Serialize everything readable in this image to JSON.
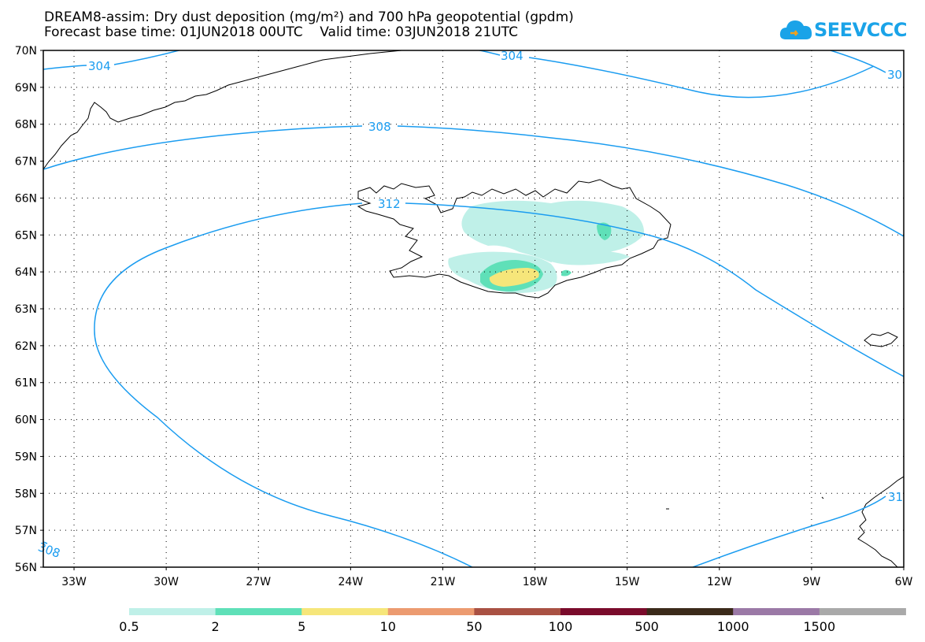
{
  "title": {
    "line1": "DREAM8-assim: Dry dust deposition (mg/m²) and 700 hPa geopotential (gpdm)",
    "line2": "Forecast base time: 01JUN2018 00UTC    Valid time: 03JUN2018 21UTC"
  },
  "logo": {
    "text": "SEEVCCC",
    "icon": "cloud-logo-icon",
    "color": "#1aa3e8"
  },
  "axes": {
    "lat_labels": [
      "70N",
      "69N",
      "68N",
      "67N",
      "66N",
      "65N",
      "64N",
      "63N",
      "62N",
      "61N",
      "60N",
      "59N",
      "58N",
      "57N",
      "56N"
    ],
    "lon_labels": [
      "33W",
      "30W",
      "27W",
      "24W",
      "21W",
      "18W",
      "15W",
      "12W",
      "9W",
      "6W"
    ],
    "lat_range": [
      56,
      70
    ],
    "lon_range": [
      -34,
      -6
    ],
    "grid": "dotted"
  },
  "contours": {
    "color": "#1a9cf0",
    "labels": [
      "304",
      "304",
      "30",
      "308",
      "312",
      "308",
      "31"
    ]
  },
  "legend": {
    "colors": [
      "#bff0e8",
      "#5fe0b8",
      "#f6e67a",
      "#ec9b70",
      "#a95143",
      "#7a0b2b",
      "#3b2a1a",
      "#9b79a6",
      "#a9a9a9"
    ],
    "labels": [
      "0.5",
      "2",
      "5",
      "10",
      "50",
      "100",
      "500",
      "1000",
      "1500"
    ]
  }
}
